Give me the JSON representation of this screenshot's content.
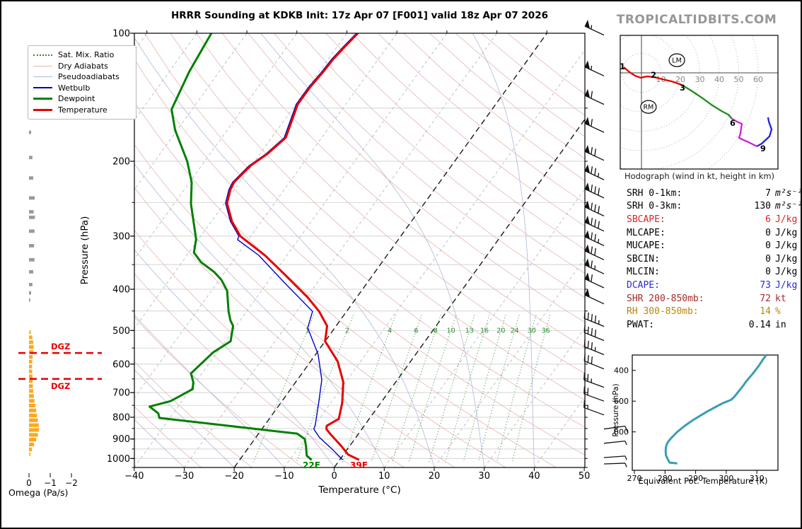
{
  "header": {
    "title": "HRRR Sounding at KDKB Init: 17z Apr 07 [F001] valid 18z Apr 07 2026",
    "site": "TROPICALTIDBITS.COM"
  },
  "legend": {
    "items": [
      {
        "label": "Sat. Mix. Ratio",
        "color": "#2e8b2e",
        "style": "dotted",
        "lw": 1
      },
      {
        "label": "Dry Adiabats",
        "color": "#e8b4b4",
        "style": "solid",
        "lw": 1
      },
      {
        "label": "Pseudoadiabats",
        "color": "#b4b4dc",
        "style": "solid",
        "lw": 1
      },
      {
        "label": "Wetbulb",
        "color": "#0000cd",
        "style": "solid",
        "lw": 2
      },
      {
        "label": "Dewpoint",
        "color": "#008000",
        "style": "solid",
        "lw": 3
      },
      {
        "label": "Temperature",
        "color": "#e60000",
        "style": "solid",
        "lw": 3
      }
    ]
  },
  "skewt": {
    "xlabel": "Temperature (°C)",
    "ylabel": "Pressure (hPa)",
    "x_ticks": [
      -40,
      -30,
      -20,
      -10,
      0,
      10,
      20,
      30,
      40,
      50
    ],
    "x_tick_labels": [
      "−40",
      "−30",
      "−20",
      "−10",
      "0",
      "10",
      "20",
      "30",
      "40",
      "50"
    ],
    "p_ticks": [
      100,
      200,
      300,
      400,
      500,
      600,
      700,
      800,
      900,
      1000
    ],
    "isotherm_highlight": [
      0,
      -20
    ],
    "surface_temp_label": "39F",
    "surface_dewpoint_label": "22F"
  },
  "omega": {
    "xlabel": "Omega (Pa/s)",
    "ticks": [
      0,
      -1,
      -2
    ],
    "tick_labels": [
      "0",
      "−1",
      "−2"
    ],
    "dgz_label": "DGZ",
    "dgz_levels_hPa": [
      565,
      650
    ]
  },
  "hodograph": {
    "caption": "Hodograph (wind in kt, height in km)",
    "ring_labels": [
      10,
      20,
      30,
      40,
      50,
      60
    ]
  },
  "theta_e": {
    "xlabel": "Equivalent Pot. Temperature (K)",
    "ylabel": "Pressure (hPa)"
  },
  "indices": {
    "rows": [
      {
        "label": "SRH 0-1km:",
        "value": "7",
        "unit": "m²s⁻²",
        "color": "#000000",
        "italic_unit": true
      },
      {
        "label": "SRH 0-3km:",
        "value": "130",
        "unit": "m²s⁻²",
        "color": "#000000",
        "italic_unit": true
      },
      {
        "label": "SBCAPE:",
        "value": "6",
        "unit": "J/kg",
        "color": "#dd2222",
        "italic_unit": false
      },
      {
        "label": "MLCAPE:",
        "value": "0",
        "unit": "J/kg",
        "color": "#000000",
        "italic_unit": false
      },
      {
        "label": "MUCAPE:",
        "value": "0",
        "unit": "J/kg",
        "color": "#000000",
        "italic_unit": false
      },
      {
        "label": "SBCIN:",
        "value": "0",
        "unit": "J/kg",
        "color": "#000000",
        "italic_unit": false
      },
      {
        "label": "MLCIN:",
        "value": "0",
        "unit": "J/kg",
        "color": "#000000",
        "italic_unit": false
      },
      {
        "label": "DCAPE:",
        "value": "73",
        "unit": "J/kg",
        "color": "#2a2ad4",
        "italic_unit": false
      },
      {
        "label": "SHR 200-850mb:",
        "value": "72",
        "unit": "kt",
        "color": "#a52a2a",
        "italic_unit": false
      },
      {
        "label": "RH 300-850mb:",
        "value": "14",
        "unit": "%",
        "color": "#b8860b",
        "italic_unit": false
      },
      {
        "label": "PWAT:",
        "value": "0.14",
        "unit": "in",
        "color": "#000000",
        "italic_unit": false
      }
    ]
  },
  "chart_data": [
    {
      "type": "line",
      "name": "skewt_sounding",
      "title": "HRRR Sounding at KDKB Init: 17z Apr 07 [F001] valid 18z Apr 07 2026",
      "xlabel": "Temperature (°C)",
      "ylabel": "Pressure (hPa)",
      "xlim": [
        -40,
        50
      ],
      "ylim": [
        1050,
        100
      ],
      "temperature": {
        "pressure_hPa": [
          100,
          108,
          115,
          124,
          134,
          147,
          176,
          192,
          205,
          224,
          233,
          251,
          277,
          300,
          333,
          359,
          387,
          418,
          451,
          488,
          530,
          591,
          661,
          740,
          807,
          838,
          853,
          876,
          936,
          979,
          1008
        ],
        "T_C": [
          -57.8,
          -58.5,
          -59.0,
          -59.2,
          -59.6,
          -59.6,
          -57.2,
          -58.5,
          -60.2,
          -61.1,
          -60.8,
          -59.5,
          -55.9,
          -52.1,
          -44.4,
          -39.5,
          -34.7,
          -29.8,
          -25.5,
          -21.8,
          -20.0,
          -14.6,
          -10.5,
          -7.7,
          -6.1,
          -7.5,
          -7.1,
          -5.6,
          -1.6,
          0.9,
          3.9
        ]
      },
      "dewpoint": {
        "pressure_hPa": [
          100,
          123,
          151,
          169,
          200,
          224,
          252,
          305,
          328,
          346,
          364,
          380,
          403,
          451,
          474,
          488,
          530,
          563,
          631,
          661,
          687,
          733,
          755,
          783,
          803,
          826,
          858,
          874,
          900,
          936,
          985,
          1008
        ],
        "Td_C": [
          -87.1,
          -86.0,
          -84.1,
          -80.4,
          -73.5,
          -69.6,
          -66.6,
          -60.5,
          -59.0,
          -56.1,
          -52.2,
          -49.6,
          -46.9,
          -43.6,
          -41.9,
          -40.6,
          -38.9,
          -40.8,
          -42.2,
          -40.5,
          -39.6,
          -42.3,
          -45.7,
          -43.0,
          -42.1,
          -32.3,
          -18.9,
          -12.3,
          -10.0,
          -8.7,
          -7.2,
          -5.6
        ]
      },
      "wetbulb": {
        "pressure_hPa": [
          306,
          333,
          387,
          451,
          493,
          569,
          653,
          740,
          838,
          853,
          892,
          950,
          996,
          1008
        ],
        "Tw_C": [
          -52.0,
          -45.5,
          -36.3,
          -26.7,
          -25.3,
          -19.4,
          -15.0,
          -12.3,
          -9.7,
          -9.5,
          -7.2,
          -3.0,
          0.0,
          0.7
        ]
      },
      "mixing_ratio_lines_gkg": [
        1,
        2,
        4,
        6,
        8,
        10,
        13,
        16,
        20,
        24,
        30,
        36
      ],
      "wind_barbs": {
        "pressure_hPa": [
          101,
          126,
          147,
          171,
          199,
          221,
          244,
          269,
          292,
          316,
          341,
          368,
          397,
          433,
          489,
          528,
          570,
          616,
          680,
          733,
          790,
          853,
          921,
          995,
          1030
        ],
        "speed_kt": [
          55,
          55,
          60,
          60,
          70,
          75,
          80,
          80,
          80,
          75,
          70,
          65,
          60,
          50,
          45,
          40,
          35,
          30,
          25,
          20,
          15,
          10,
          5,
          5,
          5
        ],
        "staff_rot_deg": [
          25,
          25,
          25,
          25,
          25,
          25,
          25,
          25,
          25,
          25,
          25,
          25,
          25,
          25,
          22,
          22,
          22,
          22,
          20,
          20,
          20,
          172,
          174,
          176,
          178
        ]
      },
      "surface_temp_F": 39,
      "surface_dewpoint_F": 22
    },
    {
      "type": "line",
      "name": "hodograph",
      "units": "kt",
      "rings_kt": [
        10,
        20,
        30,
        40,
        50,
        60
      ],
      "segments": [
        {
          "layer_km": "0-3",
          "color": "#e60000",
          "points": [
            [
              -9.1,
              2.9
            ],
            [
              -6.2,
              0.4
            ],
            [
              -3.3,
              -1.5
            ],
            [
              -0.4,
              -2.5
            ],
            [
              2.9,
              -1.8
            ],
            [
              6.5,
              -2.2
            ],
            [
              10.9,
              -3.3
            ],
            [
              15.6,
              -4.4
            ],
            [
              20.7,
              -6.2
            ]
          ]
        },
        {
          "layer_km": "3-6",
          "color": "#1f8c1f",
          "points": [
            [
              20.7,
              -6.2
            ],
            [
              25.5,
              -9.1
            ],
            [
              30.9,
              -12.7
            ],
            [
              36.4,
              -16.7
            ],
            [
              41.1,
              -19.6
            ],
            [
              44.7,
              -21.5
            ],
            [
              46.5,
              -23.6
            ]
          ]
        },
        {
          "layer_km": "6-9",
          "color": "#cc22cc",
          "points": [
            [
              46.5,
              -23.6
            ],
            [
              49.1,
              -25.1
            ],
            [
              51.6,
              -26.2
            ],
            [
              50.9,
              -30.9
            ],
            [
              50.2,
              -33.5
            ],
            [
              54.9,
              -35.6
            ],
            [
              59.3,
              -37.8
            ]
          ]
        },
        {
          "layer_km": "9-12",
          "color": "#2222dd",
          "points": [
            [
              59.3,
              -37.8
            ],
            [
              61.8,
              -36.4
            ],
            [
              65.8,
              -32.7
            ],
            [
              66.9,
              -29.1
            ],
            [
              65.5,
              -25.1
            ],
            [
              65.1,
              -22.9
            ]
          ]
        }
      ],
      "height_labels": [
        {
          "km": 1,
          "u": -9.8,
          "v": 3.3
        },
        {
          "km": 2,
          "u": 6.2,
          "v": -1.1
        },
        {
          "km": 3,
          "u": 21.1,
          "v": -7.6
        },
        {
          "km": 6,
          "u": 46.9,
          "v": -25.8
        },
        {
          "km": 9,
          "u": 62.5,
          "v": -38.9
        }
      ],
      "storm_motion_markers": [
        {
          "label": "RM",
          "u": 3.6,
          "v": -17.5
        },
        {
          "label": "LM",
          "u": 18.2,
          "v": 6.5
        }
      ]
    },
    {
      "type": "bar",
      "name": "omega_profile",
      "xlabel": "Omega (Pa/s)",
      "units": "Pa/s",
      "gray_bars": {
        "pressure_hPa": [
          171,
          196,
          219,
          244,
          263,
          271,
          292,
          316,
          341,
          364,
          390,
          408,
          424
        ],
        "omega": [
          -0.1,
          -0.16,
          -0.2,
          -0.27,
          -0.22,
          -0.28,
          -0.26,
          -0.24,
          -0.26,
          -0.2,
          -0.16,
          -0.1,
          -0.06
        ]
      },
      "orange_bars": {
        "pressure_hPa": [
          505,
          519,
          533,
          547,
          562,
          577,
          592,
          608,
          624,
          641,
          658,
          676,
          694,
          713,
          732,
          751,
          771,
          792,
          813,
          835,
          857,
          880,
          903,
          927,
          952,
          977
        ],
        "omega": [
          -0.1,
          -0.15,
          -0.2,
          -0.22,
          -0.2,
          -0.17,
          -0.15,
          -0.14,
          -0.15,
          -0.16,
          -0.17,
          -0.18,
          -0.2,
          -0.23,
          -0.26,
          -0.3,
          -0.34,
          -0.38,
          -0.42,
          -0.46,
          -0.47,
          -0.42,
          -0.34,
          -0.24,
          -0.14,
          -0.08
        ]
      },
      "dgz_levels_hPa": [
        565,
        650
      ]
    },
    {
      "type": "line",
      "name": "theta_e_profile",
      "xlabel": "Equivalent Pot. Temperature (K)",
      "ylabel": "Pressure (hPa)",
      "x_ticks": [
        270,
        280,
        290,
        300,
        310
      ],
      "y_ticks": [
        400,
        600,
        800
      ],
      "color": "#3a9db5",
      "theta_e_K": [
        284,
        281.5,
        280.8,
        280.3,
        280.2,
        280.3,
        280.6,
        281,
        282,
        284,
        286.5,
        289,
        291.5,
        294,
        296.5,
        299,
        301.5,
        302.5,
        303.5,
        304.5,
        305.5,
        306.5,
        307.5,
        308.5,
        309.5,
        310.5,
        311.3,
        312,
        312.7,
        313
      ],
      "pressure_hPa": [
        1005,
        1000,
        975,
        950,
        925,
        900,
        880,
        865,
        840,
        800,
        760,
        725,
        695,
        665,
        638,
        612,
        592,
        575,
        550,
        525,
        500,
        472,
        448,
        425,
        400,
        373,
        350,
        328,
        310,
        300
      ]
    }
  ]
}
